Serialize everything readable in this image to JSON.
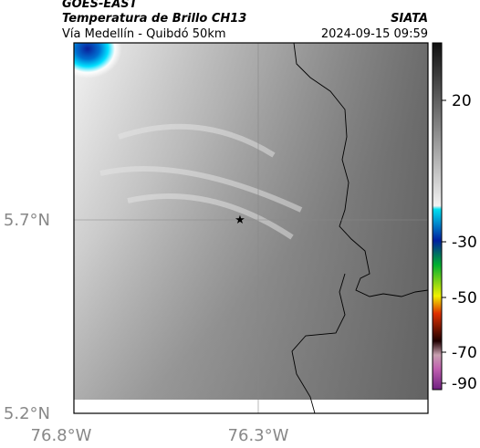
{
  "header": {
    "source": "GOES-EAST",
    "title": "Temperatura de Brillo CH13",
    "organization": "SIATA",
    "subtitle": "Vía Medellín - Quibdó 50km",
    "timestamp": "2024-09-15 09:59"
  },
  "map": {
    "lat_labels": [
      "5.7°N",
      "5.2°N"
    ],
    "lon_labels": [
      "76.8°W",
      "76.3°W"
    ]
  },
  "colorbar": {
    "ticks": [
      20,
      -30,
      -50,
      -70,
      -90
    ]
  }
}
